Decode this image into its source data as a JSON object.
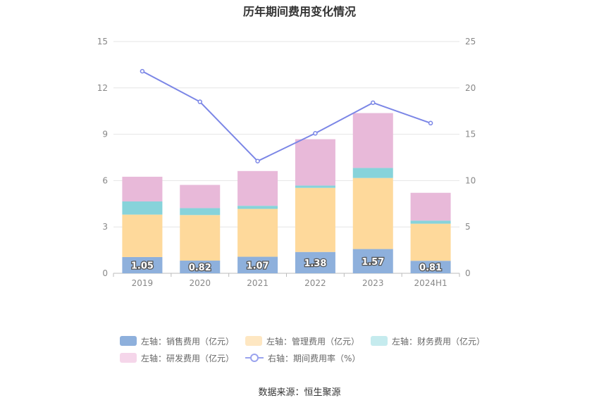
{
  "chart_data": {
    "type": "bar",
    "title": "历年期间费用变化情况",
    "categories": [
      "2019",
      "2020",
      "2021",
      "2022",
      "2023",
      "2024H1"
    ],
    "series": [
      {
        "name": "左轴：销售费用（亿元）",
        "axis": "left",
        "kind": "bar",
        "color": "#8eb0dc",
        "values": [
          1.05,
          0.82,
          1.07,
          1.38,
          1.57,
          0.81
        ],
        "labels": [
          "1.05",
          "0.82",
          "1.07",
          "1.38",
          "1.57",
          "0.81"
        ]
      },
      {
        "name": "左轴：管理费用（亿元）",
        "axis": "left",
        "kind": "bar",
        "color": "#fed99b",
        "values": [
          2.75,
          2.95,
          3.1,
          4.15,
          4.6,
          2.4
        ]
      },
      {
        "name": "左轴：财务费用（亿元）",
        "axis": "left",
        "kind": "bar",
        "color": "#87d3da",
        "values": [
          0.85,
          0.45,
          0.2,
          0.15,
          0.65,
          0.2
        ]
      },
      {
        "name": "左轴：研发费用（亿元）",
        "axis": "left",
        "kind": "bar",
        "color": "#e8b9d9",
        "values": [
          1.6,
          1.5,
          2.25,
          3.0,
          3.55,
          1.8
        ]
      },
      {
        "name": "右轴：期间费用率（%）",
        "axis": "right",
        "kind": "line",
        "color": "#7b86e6",
        "values": [
          21.8,
          18.5,
          12.1,
          15.1,
          18.4,
          16.2
        ]
      }
    ],
    "left_axis": {
      "ylim": [
        0,
        15
      ],
      "ticks": [
        "0",
        "3",
        "6",
        "9",
        "12",
        "15"
      ]
    },
    "right_axis": {
      "ylim": [
        0,
        25
      ],
      "ticks": [
        "0",
        "5",
        "10",
        "15",
        "20",
        "25"
      ]
    },
    "grid": true,
    "legend_position": "bottom"
  },
  "legend": {
    "row1": [
      "左轴：销售费用（亿元）",
      "左轴：管理费用（亿元）",
      "左轴：财务费用（亿元）"
    ],
    "row2": [
      "左轴：研发费用（亿元）",
      "右轴：期间费用率（%）"
    ],
    "colors": [
      "#8eb0dc",
      "#fed99b",
      "#c5ebee",
      "#f5d6ea",
      "#7b86e6"
    ]
  },
  "source": "数据来源：恒生聚源"
}
